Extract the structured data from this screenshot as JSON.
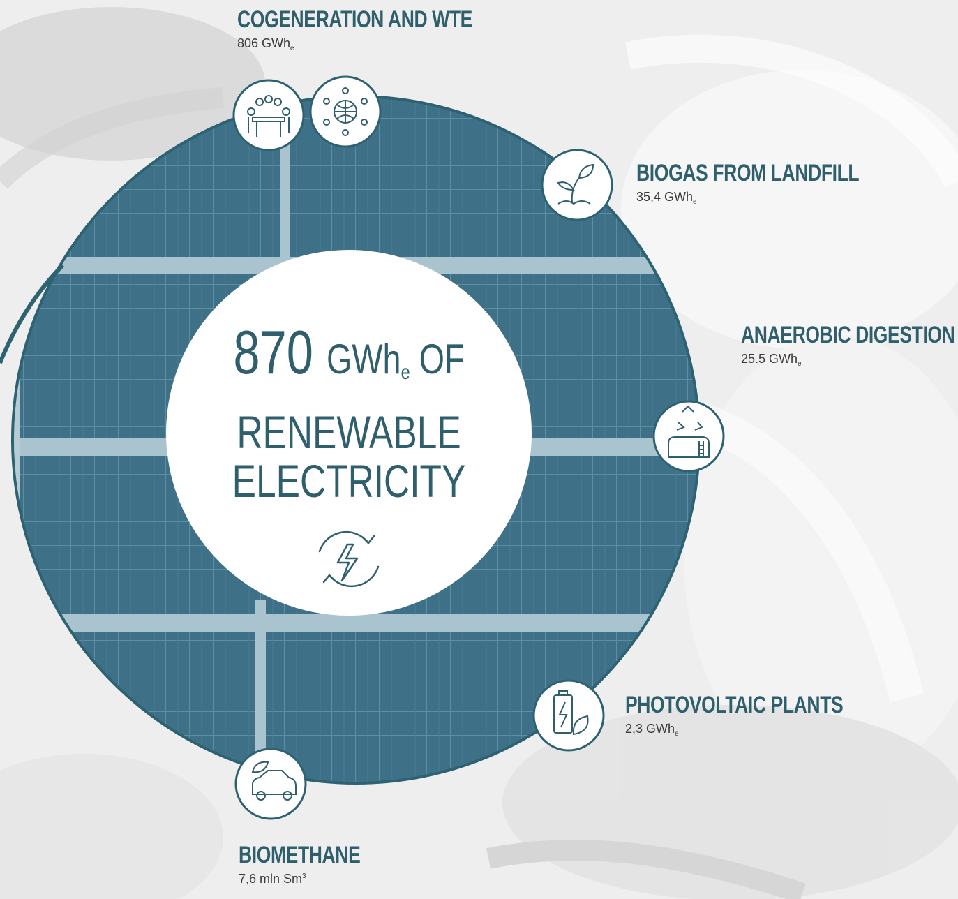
{
  "center": {
    "number": "870",
    "unit": "GWh",
    "unit_sub": "e",
    "suffix": "OF",
    "line2": "RENEWABLE",
    "line3": "ELECTRICITY",
    "icon": "renewable-energy-cycle-icon"
  },
  "sources": [
    {
      "title": "COGENERATION AND WTE",
      "value": "806 GWh",
      "value_sub": "e",
      "icons": [
        "meeting-icon",
        "network-globe-icon"
      ]
    },
    {
      "title": "BIOGAS FROM LANDFILL",
      "value": "35,4 GWh",
      "value_sub": "e",
      "icons": [
        "sprout-icon"
      ]
    },
    {
      "title": "ANAEROBIC DIGESTION",
      "value": "25.5 GWh",
      "value_sub": "e",
      "icons": [
        "recycle-tank-icon"
      ]
    },
    {
      "title": "PHOTOVOLTAIC PLANTS",
      "value": "2,3 GWh",
      "value_sub": "e",
      "icons": [
        "battery-leaf-icon"
      ]
    },
    {
      "title": "BIOMETHANE",
      "value": "7,6 mln Sm",
      "value_sup": "3",
      "icons": [
        "eco-car-icon"
      ]
    }
  ],
  "colors": {
    "accent": "#2f5f6c",
    "circle_fill": "#3d6f84",
    "ring": "#2d6272",
    "background": "#eeeeee",
    "value_text": "#3a3a3a"
  }
}
